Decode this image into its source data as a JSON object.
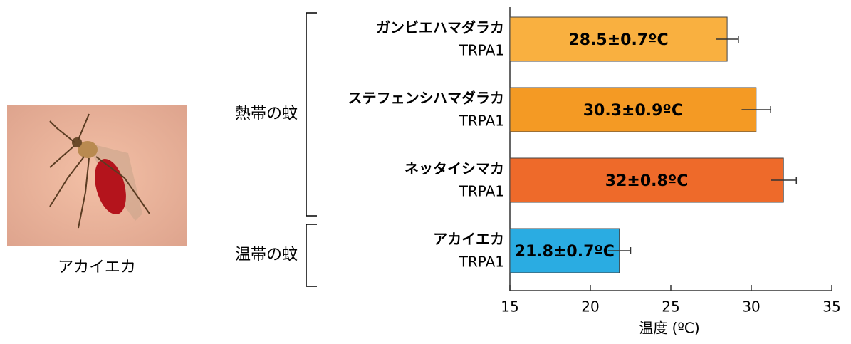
{
  "chart_data": {
    "type": "bar",
    "orientation": "horizontal",
    "categories": [
      [
        "ガンビエハマダラカ",
        "TRPA1"
      ],
      [
        "ステフェンシハマダラカ",
        "TRPA1"
      ],
      [
        "ネッタイシマカ",
        "TRPA1"
      ],
      [
        "アカイエカ",
        "TRPA1"
      ]
    ],
    "values": [
      28.5,
      30.3,
      32,
      21.8
    ],
    "errors": [
      0.7,
      0.9,
      0.8,
      0.7
    ],
    "value_labels": [
      "28.5±0.7ºC",
      "30.3±0.9ºC",
      "32±0.8ºC",
      "21.8±0.7ºC"
    ],
    "colors": [
      "#f9b040",
      "#f49a24",
      "#ee6a2a",
      "#2aace2"
    ],
    "xlim": [
      15,
      35
    ],
    "xticks": [
      15,
      20,
      25,
      30,
      35
    ],
    "xlabel": "温度 (ºC)",
    "groups": [
      {
        "label": "熱帯の蚊",
        "color": "#e0202a",
        "from": 0,
        "to": 2
      },
      {
        "label": "温帯の蚊",
        "color": "#3030c0",
        "from": 3,
        "to": 3
      }
    ],
    "photo_caption": "アカイエカ"
  }
}
